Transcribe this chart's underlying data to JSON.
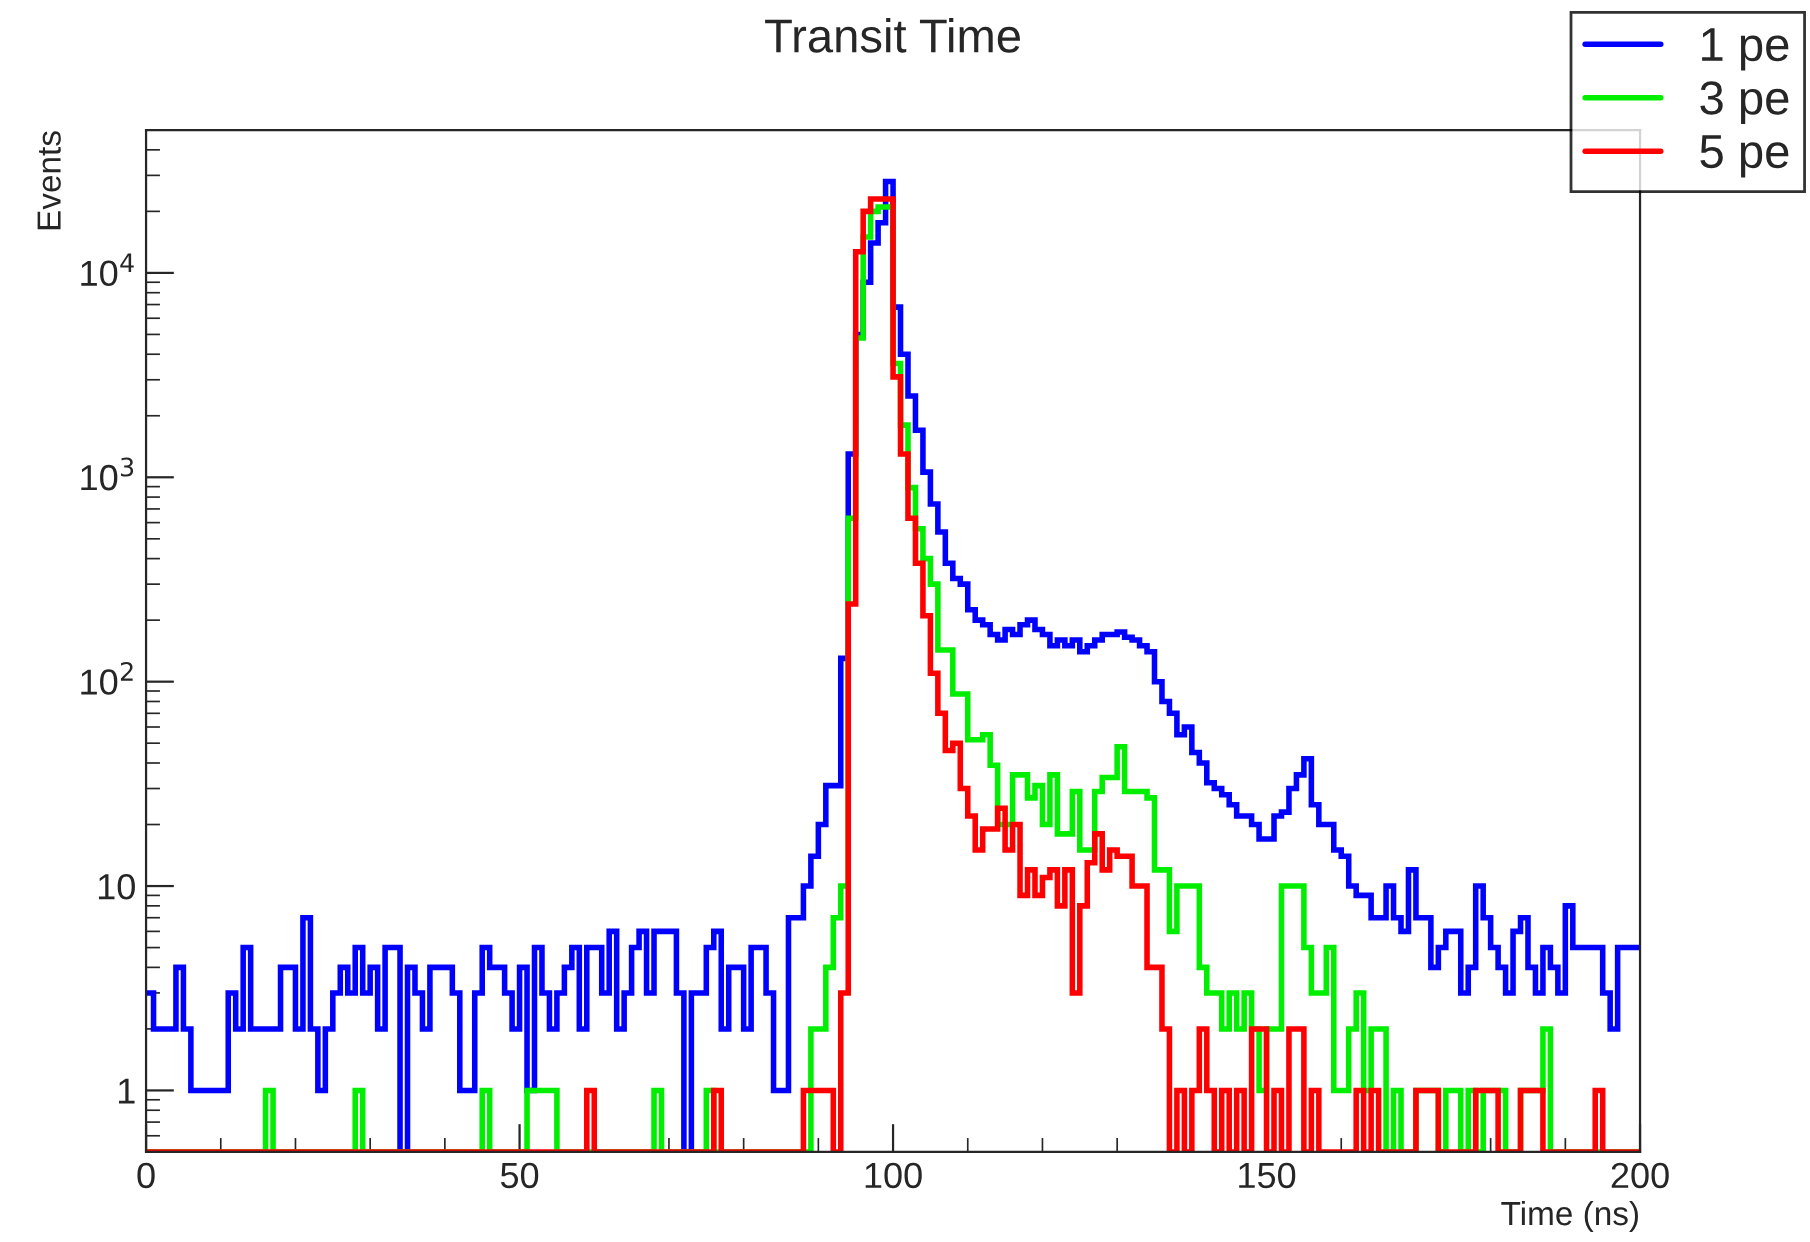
{
  "chart_data": {
    "type": "histogram",
    "title": "Transit Time",
    "xlabel": "Time (ns)",
    "ylabel": "Events",
    "log": "y",
    "grid": false,
    "legend": "top right",
    "xlim": [
      0,
      200
    ],
    "xticks": [
      0,
      50,
      100,
      150,
      200
    ],
    "ylim": [
      0.5,
      50000
    ],
    "yticks": [
      1,
      10,
      {
        "value": 100,
        "label": "10$^{2}$"
      },
      {
        "value": 1000,
        "label": "10$^{3}$"
      },
      {
        "value": 10000,
        "label": "10$^{4}$"
      }
    ],
    "bins": [
      0,
      1,
      2,
      3,
      4,
      5,
      6,
      7,
      8,
      9,
      10,
      11,
      12,
      13,
      14,
      15,
      16,
      17,
      18,
      19,
      20,
      21,
      22,
      23,
      24,
      25,
      26,
      27,
      28,
      29,
      30,
      31,
      32,
      33,
      34,
      35,
      36,
      37,
      38,
      39,
      40,
      41,
      42,
      43,
      44,
      45,
      46,
      47,
      48,
      49,
      50,
      51,
      52,
      53,
      54,
      55,
      56,
      57,
      58,
      59,
      60,
      61,
      62,
      63,
      64,
      65,
      66,
      67,
      68,
      69,
      70,
      71,
      72,
      73,
      74,
      75,
      76,
      77,
      78,
      79,
      80,
      81,
      82,
      83,
      84,
      85,
      86,
      87,
      88,
      89,
      90,
      91,
      92,
      93,
      94,
      95,
      96,
      97,
      98,
      99,
      100,
      101,
      102,
      103,
      104,
      105,
      106,
      107,
      108,
      109,
      110,
      111,
      112,
      113,
      114,
      115,
      116,
      117,
      118,
      119,
      120,
      121,
      122,
      123,
      124,
      125,
      126,
      127,
      128,
      129,
      130,
      131,
      132,
      133,
      134,
      135,
      136,
      137,
      138,
      139,
      140,
      141,
      142,
      143,
      144,
      145,
      146,
      147,
      148,
      149,
      150,
      151,
      152,
      153,
      154,
      155,
      156,
      157,
      158,
      159,
      160,
      161,
      162,
      163,
      164,
      165,
      166,
      167,
      168,
      169,
      170,
      171,
      172,
      173,
      174,
      175,
      176,
      177,
      178,
      179,
      180,
      181,
      182,
      183,
      184,
      185,
      186,
      187,
      188,
      189,
      190,
      191,
      192,
      193,
      194,
      195,
      196,
      197,
      198,
      199,
      200
    ],
    "series": [
      {
        "name": "1 pe",
        "color": "#0000ff",
        "values": [
          3,
          2,
          2,
          2,
          4,
          2,
          1,
          1,
          1,
          1,
          1,
          3,
          2,
          5,
          2,
          2,
          2,
          2,
          4,
          4,
          2,
          7,
          2,
          1,
          2,
          3,
          4,
          3,
          5,
          3,
          4,
          2,
          5,
          5,
          null,
          4,
          3,
          2,
          4,
          4,
          4,
          3,
          1,
          1,
          3,
          5,
          4,
          4,
          3,
          2,
          4,
          1,
          5,
          3,
          2,
          3,
          4,
          5,
          2,
          5,
          5,
          3,
          6,
          2,
          3,
          5,
          6,
          3,
          6,
          6,
          6,
          3,
          null,
          3,
          3,
          5,
          6,
          2,
          4,
          4,
          2,
          5,
          5,
          3,
          1,
          1,
          7,
          7,
          10,
          14,
          20,
          31,
          31,
          130,
          1300,
          5000,
          9000,
          14000,
          17600,
          28000,
          6800,
          4000,
          2500,
          1700,
          1060,
          740,
          540,
          380,
          320,
          300,
          225,
          200,
          190,
          170,
          160,
          180,
          170,
          190,
          200,
          180,
          170,
          150,
          160,
          150,
          160,
          140,
          150,
          160,
          170,
          170,
          175,
          165,
          160,
          150,
          140,
          100,
          80,
          70,
          55,
          60,
          45,
          40,
          32,
          30,
          28,
          25,
          22,
          22,
          20,
          17,
          17,
          22,
          23,
          30,
          35,
          42,
          25,
          20,
          20,
          15,
          14,
          10,
          9,
          9,
          7,
          7,
          10,
          7,
          6,
          12,
          7,
          7,
          4,
          5,
          6,
          6,
          3,
          4,
          10,
          7,
          5,
          4,
          3,
          6,
          7,
          4,
          3,
          5,
          4,
          3,
          8,
          5,
          5,
          5,
          5,
          3,
          2,
          5,
          5,
          5
        ]
      },
      {
        "name": "3 pe",
        "color": "#00ee00",
        "values": [
          null,
          null,
          null,
          null,
          null,
          null,
          null,
          null,
          null,
          null,
          null,
          null,
          null,
          null,
          null,
          null,
          1,
          null,
          null,
          null,
          null,
          null,
          null,
          null,
          null,
          null,
          null,
          null,
          1,
          null,
          null,
          null,
          null,
          null,
          null,
          null,
          null,
          null,
          null,
          null,
          null,
          null,
          null,
          null,
          null,
          1,
          null,
          null,
          null,
          null,
          null,
          1,
          1,
          1,
          1,
          null,
          null,
          null,
          null,
          null,
          null,
          null,
          null,
          null,
          null,
          null,
          null,
          null,
          1,
          null,
          null,
          null,
          null,
          null,
          null,
          1,
          null,
          null,
          null,
          null,
          null,
          null,
          null,
          null,
          null,
          null,
          null,
          null,
          null,
          2,
          2,
          4,
          7,
          10,
          630,
          4800,
          15000,
          20000,
          21000,
          21000,
          3600,
          1800,
          890,
          560,
          400,
          300,
          143,
          143,
          87,
          87,
          52,
          52,
          55,
          39,
          20,
          20,
          35,
          35,
          27,
          31,
          20,
          35,
          18,
          18,
          29,
          15,
          15,
          29,
          34,
          34,
          48,
          29,
          29,
          29,
          27,
          12,
          12,
          6,
          10,
          10,
          10,
          4,
          3,
          3,
          2,
          3,
          2,
          3,
          2,
          1,
          2,
          2,
          10,
          10,
          10,
          5,
          3,
          3,
          5,
          1,
          1,
          2,
          3,
          1,
          2,
          2,
          null,
          1,
          null,
          null,
          1,
          1,
          1,
          null,
          1,
          1,
          null,
          1,
          null,
          1,
          1,
          1,
          null,
          null,
          1,
          1,
          1,
          2,
          null,
          null,
          null,
          null,
          null,
          null,
          null,
          null,
          null,
          null,
          null,
          null
        ]
      },
      {
        "name": "5 pe",
        "color": "#ff0000",
        "values": [
          null,
          null,
          null,
          null,
          null,
          null,
          null,
          null,
          null,
          null,
          null,
          null,
          null,
          null,
          null,
          null,
          null,
          null,
          null,
          null,
          null,
          null,
          null,
          null,
          null,
          null,
          null,
          null,
          null,
          null,
          null,
          null,
          null,
          null,
          null,
          null,
          null,
          null,
          null,
          null,
          null,
          null,
          null,
          null,
          null,
          null,
          null,
          null,
          null,
          null,
          null,
          null,
          null,
          null,
          null,
          null,
          null,
          null,
          null,
          1,
          null,
          null,
          null,
          null,
          null,
          null,
          null,
          null,
          null,
          null,
          null,
          null,
          null,
          null,
          null,
          null,
          1,
          null,
          null,
          null,
          null,
          null,
          null,
          null,
          null,
          null,
          null,
          null,
          1,
          1,
          1,
          1,
          null,
          3,
          240,
          12700,
          20000,
          23000,
          23000,
          23000,
          3100,
          1300,
          630,
          380,
          210,
          110,
          70,
          46,
          50,
          30,
          22,
          15,
          19,
          19,
          24,
          15,
          20,
          9,
          12,
          9,
          11,
          12,
          8,
          12,
          3,
          8,
          13,
          18,
          12,
          15,
          14,
          14,
          10,
          10,
          4,
          4,
          2,
          null,
          1,
          null,
          1,
          2,
          1,
          null,
          1,
          null,
          1,
          null,
          2,
          2,
          null,
          1,
          null,
          2,
          2,
          null,
          1,
          null,
          null,
          null,
          null,
          null,
          1,
          null,
          1,
          null,
          null,
          null,
          null,
          null,
          1,
          1,
          1,
          null,
          null,
          null,
          null,
          null,
          1,
          1,
          1,
          null,
          null,
          null,
          1,
          1,
          1,
          null,
          null,
          null,
          null,
          null,
          null,
          null,
          1,
          null,
          null,
          null,
          null,
          null
        ]
      }
    ]
  }
}
